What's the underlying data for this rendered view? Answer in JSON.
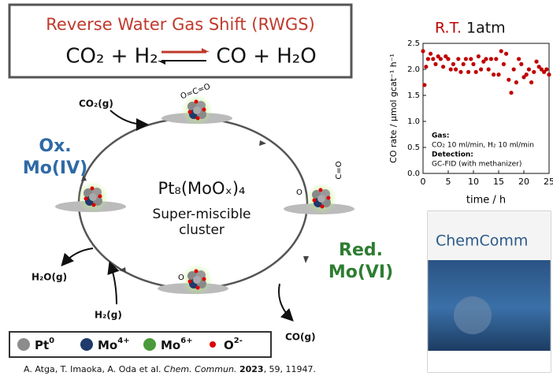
{
  "header": {
    "title": "Reverse Water Gas Shift (RWGS)",
    "reactants": "CO₂ + H₂",
    "products": "CO + H₂O"
  },
  "cycle": {
    "center": [
      "Pt₈(MoOₓ)₄",
      "Super-miscible",
      "cluster"
    ],
    "oxidized": [
      "Ox.",
      "Mo(IV)"
    ],
    "reduced": [
      "Red.",
      "Mo(VI)"
    ],
    "species": {
      "co2_in": "CO₂(g)",
      "co2_bound": "O=C=O",
      "co_bound": "C=O",
      "o_right": "O",
      "o_bottom": "O",
      "h2o_out": "H₂O(g)",
      "h2_in": "H₂(g)",
      "co_out": "CO(g)"
    }
  },
  "legend": [
    {
      "symbol": "Pt",
      "charge": "0"
    },
    {
      "symbol": "Mo",
      "charge": "4+"
    },
    {
      "symbol": "Mo",
      "charge": "6+"
    },
    {
      "symbol": "O",
      "charge": "2-"
    }
  ],
  "citation": {
    "authors": "A. Atga, T. Imaoka, A. Oda et al.",
    "journal": "Chem. Commun.",
    "year": "2023",
    "rest": ", 59, 11947."
  },
  "cover": {
    "title": "ChemComm"
  },
  "chart_data": {
    "type": "scatter",
    "title": [
      "R.T.",
      "1atm"
    ],
    "x_label": "time / h",
    "y_label": "CO rate / μmol gcat⁻¹ h⁻¹",
    "annotations": [
      "Gas:",
      "CO₂ 10 ml/min, H₂ 10 ml/min",
      "Detection:",
      "GC-FID (with methanizer)"
    ],
    "color": "#c00000",
    "x": [
      0,
      0.3,
      0.6,
      1,
      1.5,
      2,
      2.5,
      3,
      3.5,
      4,
      4.5,
      5,
      5.5,
      6,
      6.5,
      7,
      7.5,
      8,
      8.5,
      9,
      9.5,
      10,
      10.5,
      11,
      11.5,
      12,
      12.5,
      13,
      13.5,
      14,
      14.5,
      15,
      15.5,
      16,
      16.5,
      17,
      17.5,
      18,
      18.5,
      19,
      19.5,
      20,
      20.5,
      21,
      21.5,
      22,
      22.5,
      23,
      23.5,
      24,
      24.5,
      25
    ],
    "values": [
      2.35,
      1.7,
      2.05,
      2.2,
      2.3,
      2.2,
      2.1,
      2.25,
      2.2,
      2.05,
      2.25,
      2.2,
      2.0,
      2.1,
      2.0,
      2.2,
      1.95,
      2.1,
      2.2,
      1.95,
      2.2,
      2.1,
      1.95,
      2.25,
      2.0,
      2.15,
      2.2,
      2.0,
      2.2,
      1.9,
      2.2,
      1.9,
      2.35,
      2.1,
      2.3,
      1.8,
      1.55,
      2.0,
      1.75,
      2.2,
      2.1,
      1.85,
      1.9,
      2.0,
      1.75,
      1.95,
      2.15,
      2.05,
      2.0,
      1.95,
      2.0,
      1.9
    ],
    "xlim": [
      0,
      25
    ],
    "ylim": [
      0,
      2.5
    ],
    "xticks": [
      0,
      5,
      10,
      15,
      20,
      25
    ],
    "yticks": [
      {
        "value": 0,
        "label": "0.0"
      },
      0.5,
      {
        "value": 1,
        "label": "1.0"
      },
      1.5,
      {
        "value": 2,
        "label": "2.0"
      },
      2.5
    ]
  }
}
